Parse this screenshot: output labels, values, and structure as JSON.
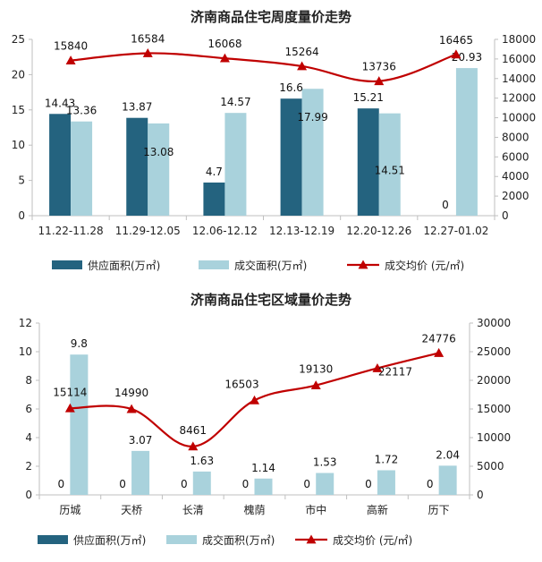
{
  "chart_data": [
    {
      "type": "bar",
      "title": "济南商品住宅周度量价走势",
      "categories": [
        "11.22-11.28",
        "11.29-12.05",
        "12.06-12.12",
        "12.13-12.19",
        "12.20-12.26",
        "12.27-01.02"
      ],
      "series": [
        {
          "name": "供应面积(万㎡)",
          "type": "bar",
          "axis": "left",
          "color": "#24637f",
          "values": [
            14.43,
            13.87,
            4.7,
            16.6,
            15.21,
            0
          ]
        },
        {
          "name": "成交面积(万㎡)",
          "type": "bar",
          "axis": "left",
          "color": "#a9d2dc",
          "values": [
            13.36,
            13.08,
            14.57,
            17.99,
            14.51,
            20.93
          ]
        },
        {
          "name": "成交均价 (元/㎡)",
          "type": "line",
          "axis": "right",
          "color": "#c00000",
          "values": [
            15840,
            16584,
            16068,
            15264,
            13736,
            16465
          ]
        }
      ],
      "labels": {
        "supply": [
          "14.43",
          "13.87",
          "4.7",
          "16.6",
          "15.21",
          "0"
        ],
        "deal": [
          "13.36",
          "13.08",
          "14.57",
          "17.99",
          "14.51",
          "20.93"
        ],
        "price": [
          "15840",
          "16584",
          "16068",
          "15264",
          "13736",
          "16465"
        ]
      },
      "y_left": {
        "min": 0,
        "max": 25,
        "ticks": [
          "0",
          "5",
          "10",
          "15",
          "20",
          "25"
        ]
      },
      "y_right": {
        "min": 0,
        "max": 18000,
        "ticks": [
          "0",
          "2000",
          "4000",
          "6000",
          "8000",
          "10000",
          "12000",
          "14000",
          "16000",
          "18000"
        ]
      },
      "legend_position": "bottom",
      "grid": false
    },
    {
      "type": "bar",
      "title": "济南商品住宅区域量价走势",
      "categories": [
        "历城",
        "天桥",
        "长清",
        "槐荫",
        "市中",
        "高新",
        "历下"
      ],
      "series": [
        {
          "name": "供应面积(万㎡)",
          "type": "bar",
          "axis": "left",
          "color": "#24637f",
          "values": [
            0,
            0,
            0,
            0,
            0,
            0,
            0
          ]
        },
        {
          "name": "成交面积(万㎡)",
          "type": "bar",
          "axis": "left",
          "color": "#a9d2dc",
          "values": [
            9.8,
            3.07,
            1.63,
            1.14,
            1.53,
            1.72,
            2.04
          ]
        },
        {
          "name": "成交均价 (元/㎡)",
          "type": "line",
          "axis": "right",
          "color": "#c00000",
          "values": [
            15114,
            14990,
            8461,
            16503,
            19130,
            22117,
            24776
          ]
        }
      ],
      "labels": {
        "supply": [
          "0",
          "0",
          "0",
          "0",
          "0",
          "0",
          "0"
        ],
        "deal": [
          "9.8",
          "3.07",
          "1.63",
          "1.14",
          "1.53",
          "1.72",
          "2.04"
        ],
        "price": [
          "15114",
          "14990",
          "8461",
          "16503",
          "19130",
          "22117",
          "24776"
        ]
      },
      "y_left": {
        "min": 0,
        "max": 12,
        "ticks": [
          "0",
          "2",
          "4",
          "6",
          "8",
          "10",
          "12"
        ]
      },
      "y_right": {
        "min": 0,
        "max": 30000,
        "ticks": [
          "0",
          "5000",
          "10000",
          "15000",
          "20000",
          "25000",
          "30000"
        ]
      },
      "legend_position": "bottom",
      "grid": false
    }
  ]
}
